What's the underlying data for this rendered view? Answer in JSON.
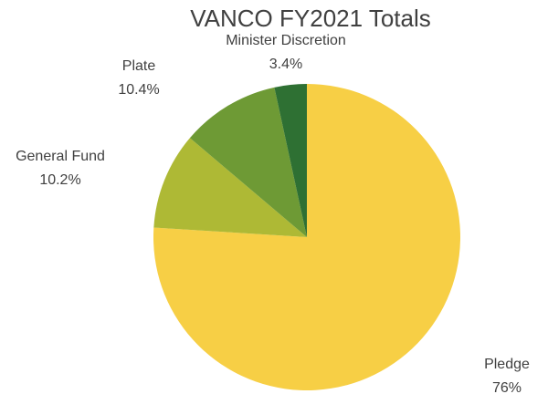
{
  "chart_data": {
    "type": "pie",
    "title": "VANCO FY2021 Totals",
    "categories": [
      "Pledge",
      "General Fund",
      "Plate",
      "Minister Discretion"
    ],
    "values": [
      76,
      10.2,
      10.4,
      3.4
    ],
    "value_labels": [
      "76%",
      "10.2%",
      "10.4%",
      "3.4%"
    ],
    "colors": [
      "#f7cf45",
      "#aeb935",
      "#6e9a35",
      "#2e7033"
    ]
  }
}
